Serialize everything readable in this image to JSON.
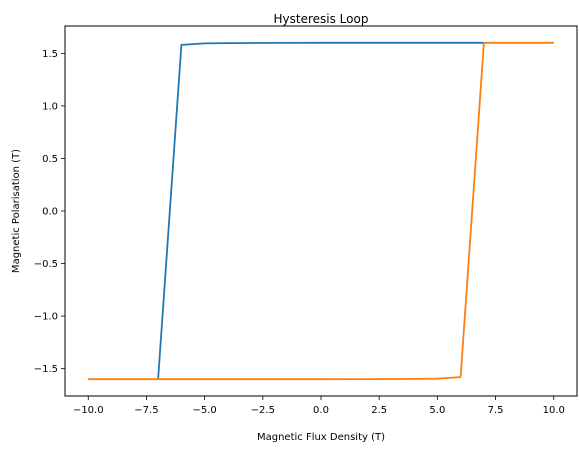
{
  "chart_data": {
    "type": "line",
    "title": "Hysteresis Loop",
    "xlabel": "Magnetic Flux Density (T)",
    "ylabel": "Magnetic Polarisation (T)",
    "xlim": [
      -11.0,
      11.0
    ],
    "ylim": [
      -1.76,
      1.76
    ],
    "xticks": [
      -10.0,
      -7.5,
      -5.0,
      -2.5,
      0.0,
      2.5,
      5.0,
      7.5,
      10.0
    ],
    "xtick_labels": [
      "−10.0",
      "−7.5",
      "−5.0",
      "−2.5",
      "0.0",
      "2.5",
      "5.0",
      "7.5",
      "10.0"
    ],
    "yticks": [
      -1.5,
      -1.0,
      -0.5,
      0.0,
      0.5,
      1.0,
      1.5
    ],
    "ytick_labels": [
      "−1.5",
      "−1.0",
      "−0.5",
      "0.0",
      "0.5",
      "1.0",
      "1.5"
    ],
    "grid": false,
    "series": [
      {
        "color": "#1f77b4",
        "x": [
          -7.0,
          -6.0,
          -5.0,
          -4.0,
          -2.0,
          0.0,
          2.0,
          4.0,
          6.0,
          7.0
        ],
        "y": [
          -1.6,
          1.58,
          1.594,
          1.597,
          1.599,
          1.6,
          1.6,
          1.6,
          1.6,
          1.6
        ]
      },
      {
        "color": "#ff7f0e",
        "x": [
          -10.0,
          -7.0,
          -5.0,
          -2.0,
          0.0,
          2.0,
          4.0,
          5.0,
          6.0,
          7.0,
          10.0
        ],
        "y": [
          -1.6,
          -1.6,
          -1.6,
          -1.6,
          -1.6,
          -1.599,
          -1.597,
          -1.594,
          -1.58,
          1.6,
          1.6
        ]
      }
    ]
  }
}
